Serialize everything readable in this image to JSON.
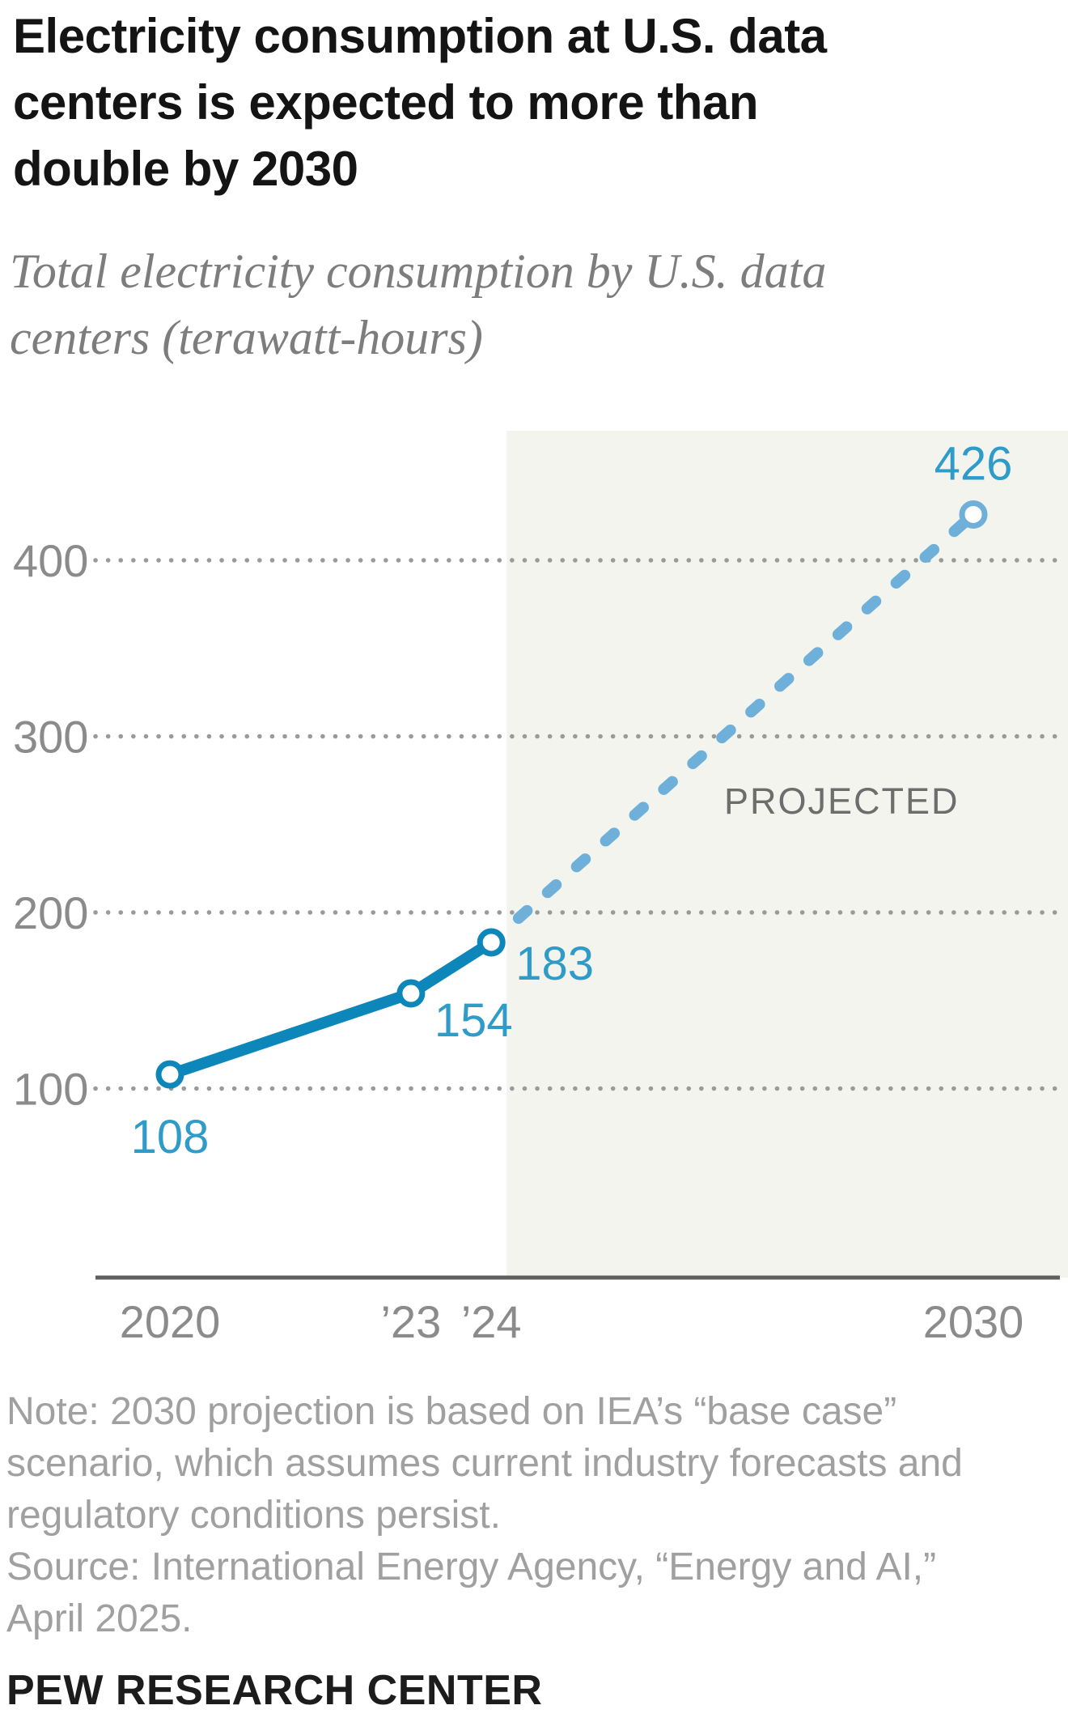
{
  "header": {
    "title": "Electricity consumption at U.S. data\ncenters is expected to more than\ndouble by 2030",
    "subtitle": "Total electricity consumption by U.S. data\ncenters (terawatt-hours)"
  },
  "chart_data": {
    "type": "line",
    "title": "Electricity consumption at U.S. data centers is expected to more than double by 2030",
    "subtitle": "Total electricity consumption by U.S. data centers (terawatt-hours)",
    "unit": "terawatt-hours",
    "grid": "dotted-horizontal",
    "legend_position": "none",
    "x_axis": {
      "tick_years": [
        2020,
        2023,
        2024,
        2030
      ],
      "tick_labels": [
        "2020",
        "’23",
        "’24",
        "2030"
      ]
    },
    "y_axis": {
      "ticks": [
        100,
        200,
        300,
        400
      ],
      "ylim": [
        0,
        480
      ]
    },
    "projection_start_year": 2024,
    "series": [
      {
        "name": "historical",
        "style": "solid",
        "points": [
          {
            "year": 2020,
            "value": 108
          },
          {
            "year": 2023,
            "value": 154
          },
          {
            "year": 2024,
            "value": 183
          }
        ]
      },
      {
        "name": "projected",
        "style": "dashed",
        "points": [
          {
            "year": 2024,
            "value": 183
          },
          {
            "year": 2030,
            "value": 426
          }
        ]
      }
    ],
    "point_labels": [
      {
        "text": "108",
        "year": 2020,
        "value": 108,
        "placement": "below"
      },
      {
        "text": "154",
        "year": 2023,
        "value": 154,
        "placement": "right-below"
      },
      {
        "text": "183",
        "year": 2024,
        "value": 183,
        "placement": "right"
      },
      {
        "text": "426",
        "year": 2030,
        "value": 426,
        "placement": "above"
      }
    ],
    "annotations": [
      {
        "text": "PROJECTED"
      }
    ]
  },
  "colors": {
    "line_historical": "#0d86ba",
    "line_projected": "#6eb0d9",
    "point_label": "#2f9bc9",
    "marker_fill": "#ffffff",
    "grid_dots": "#9a9a9a",
    "tick_label": "#8b8b8b",
    "axis_line": "#5f5f5f",
    "annotation_text": "#6d6d6d",
    "projection_bg": "#f4f4ef"
  },
  "footer": {
    "note": "Note: 2030 projection is based on IEA’s “base case”\nscenario, which assumes current industry forecasts and\nregulatory conditions persist.",
    "source": "Source: International Energy Agency, “Energy and AI,”\nApril 2025.",
    "brand": "PEW RESEARCH CENTER"
  }
}
